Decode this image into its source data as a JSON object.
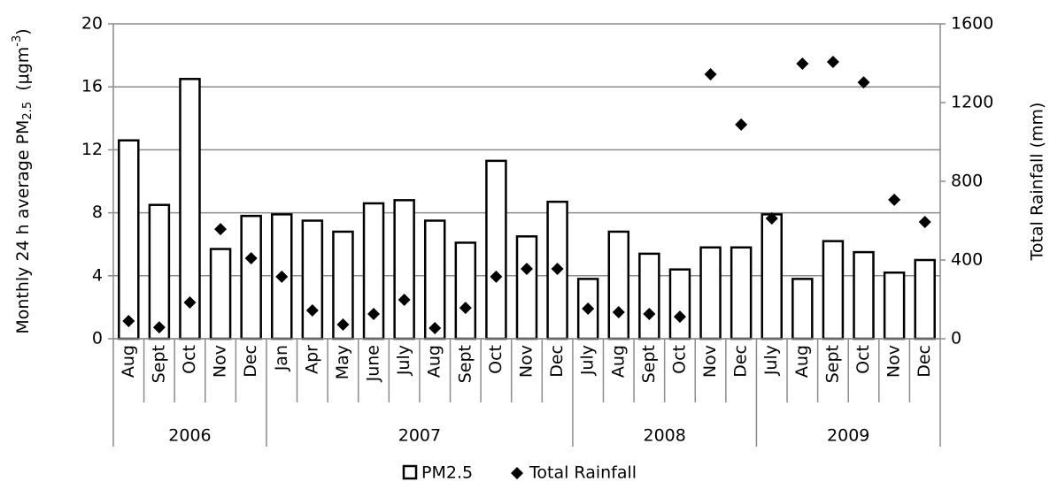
{
  "chart_data": {
    "type": "bar-scatter",
    "ylabel_parts": [
      "Monthly 24 h average PM",
      "2.5",
      "  (μgm",
      "-3",
      ")"
    ],
    "y2label": "Total Rainfall (mm)",
    "categories": [
      "Aug",
      "Sept",
      "Oct",
      "Nov",
      "Dec",
      "Jan",
      "Apr",
      "May",
      "June",
      "July",
      "Aug",
      "Sept",
      "Oct",
      "Nov",
      "Dec",
      "July",
      "Aug",
      "Sept",
      "Oct",
      "Nov",
      "Dec",
      "July",
      "Aug",
      "Sept",
      "Oct",
      "Nov",
      "Dec"
    ],
    "x_groups": [
      {
        "label": "2006",
        "size": 5
      },
      {
        "label": "2007",
        "size": 10
      },
      {
        "label": "2008",
        "size": 6
      },
      {
        "label": "2009",
        "size": 6
      }
    ],
    "series": [
      {
        "name": "PM2.5",
        "color": "#000000",
        "values": [
          12.6,
          8.5,
          16.5,
          5.7,
          7.8,
          7.9,
          7.5,
          6.8,
          8.6,
          8.8,
          7.5,
          6.1,
          11.3,
          6.5,
          8.7,
          3.8,
          6.8,
          5.4,
          4.4,
          5.8,
          5.8,
          7.9,
          3.8,
          6.2,
          5.5,
          4.2,
          5.0
        ]
      },
      {
        "name": "Total Rainfall",
        "color": "#000000",
        "axis": "y2",
        "values": [
          90,
          58,
          184,
          557,
          409,
          315,
          144,
          72,
          126,
          198,
          54,
          157,
          315,
          355,
          355,
          153,
          135,
          126,
          112,
          1344,
          1088,
          611,
          1398,
          1407,
          1303,
          706,
          593
        ]
      }
    ],
    "ylim": [
      0,
      20
    ],
    "yticks": [
      0,
      4,
      8,
      12,
      16,
      20
    ],
    "y2lim": [
      0,
      1600
    ],
    "y2ticks": [
      0,
      400,
      800,
      1200,
      1600
    ],
    "grid": true
  }
}
